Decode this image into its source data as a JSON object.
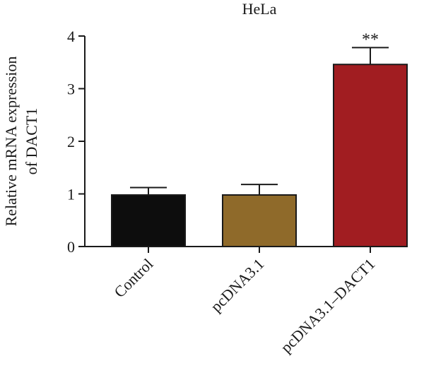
{
  "chart_data": {
    "type": "bar",
    "title": "HeLa",
    "ylabel_line1": "Relative mRNA expression",
    "ylabel_line2": "of DACT1",
    "categories": [
      "Control",
      "pcDNA3.1",
      "pcDNA3.1–DACT1"
    ],
    "values": [
      0.98,
      0.98,
      3.46
    ],
    "errors": [
      0.14,
      0.2,
      0.32
    ],
    "colors": [
      "#0d0d0d",
      "#8f6a2a",
      "#a11d21"
    ],
    "annotations": [
      "",
      "",
      "**"
    ],
    "ylim": [
      0,
      4
    ],
    "yticks": [
      0,
      1,
      2,
      3,
      4
    ]
  }
}
